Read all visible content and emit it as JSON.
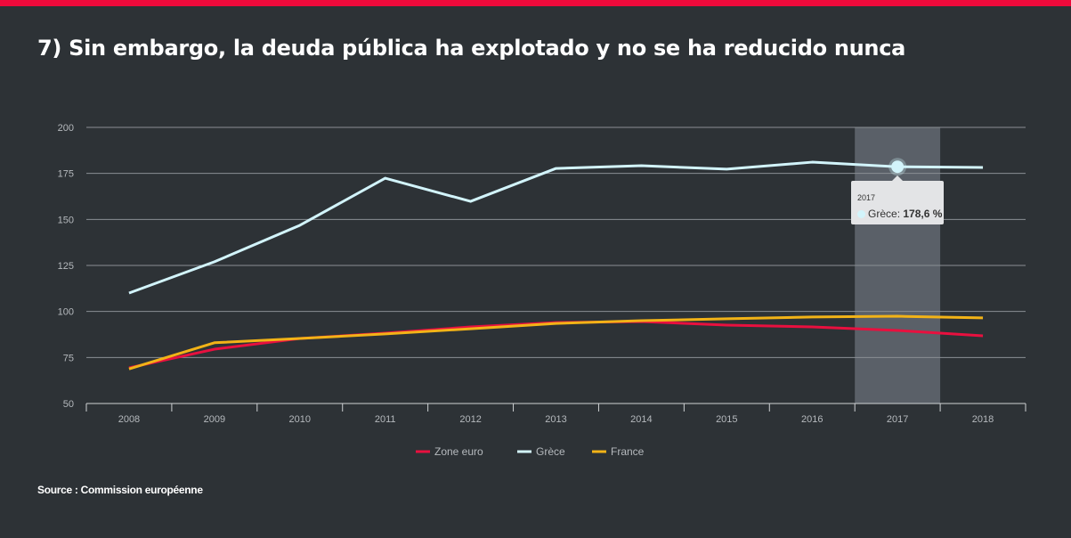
{
  "title": "7) Sin embargo, la deuda pública ha explotado y no se ha reducido nunca",
  "source": "Source : Commission européenne",
  "chart_data": {
    "type": "line",
    "categories": [
      "2008",
      "2009",
      "2010",
      "2011",
      "2012",
      "2013",
      "2014",
      "2015",
      "2016",
      "2017",
      "2018"
    ],
    "ylim": [
      50,
      200
    ],
    "yticks": [
      50,
      75,
      100,
      125,
      150,
      175,
      200
    ],
    "grid": true,
    "legend_position": "bottom",
    "series": [
      {
        "name": "Zone euro",
        "color": "#e8103f",
        "values": [
          69.4,
          79.5,
          85.3,
          88.2,
          91.6,
          94.0,
          94.5,
          92.6,
          91.6,
          89.7,
          86.8
        ]
      },
      {
        "name": "Grèce",
        "color": "#d2f4fb",
        "values": [
          110,
          127,
          146.8,
          172.4,
          159.8,
          177.7,
          179.2,
          177.3,
          181.1,
          178.6,
          178.2
        ]
      },
      {
        "name": "France",
        "color": "#f2b317",
        "values": [
          68.8,
          83.0,
          85.3,
          87.8,
          90.6,
          93.5,
          95.0,
          96.0,
          97.0,
          97.4,
          96.5
        ]
      }
    ],
    "highlight": {
      "category": "2017",
      "series": "Grèce",
      "label": "Grèce",
      "value_text": "178,6 %"
    }
  }
}
